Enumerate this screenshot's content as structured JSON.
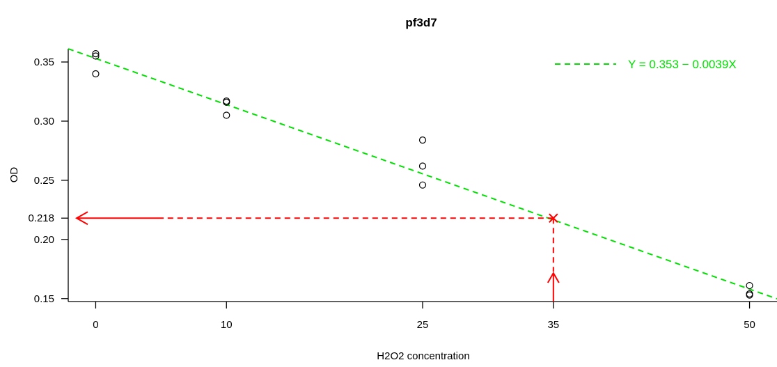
{
  "chart_data": {
    "type": "scatter",
    "title": "pf3d7",
    "xlabel": "H2O2 concentration",
    "ylabel": "OD",
    "x_ticks": [
      0,
      10,
      25,
      35,
      50
    ],
    "y_ticks": [
      0.15,
      0.2,
      0.218,
      0.25,
      0.3,
      0.35
    ],
    "y_tick_labels": [
      "0.15",
      "0.20",
      "0.218",
      "0.25",
      "0.30",
      "0.35"
    ],
    "xlim": [
      -2.1,
      52.1
    ],
    "ylim": [
      0.1475,
      0.3612
    ],
    "grid": false,
    "legend": {
      "position": "top-right"
    },
    "points": [
      {
        "x": 0,
        "y": 0.357
      },
      {
        "x": 0,
        "y": 0.355
      },
      {
        "x": 0,
        "y": 0.34
      },
      {
        "x": 10,
        "y": 0.317
      },
      {
        "x": 10,
        "y": 0.316
      },
      {
        "x": 10,
        "y": 0.305
      },
      {
        "x": 25,
        "y": 0.284
      },
      {
        "x": 25,
        "y": 0.262
      },
      {
        "x": 25,
        "y": 0.246
      },
      {
        "x": 50,
        "y": 0.161
      },
      {
        "x": 50,
        "y": 0.154
      },
      {
        "x": 50,
        "y": 0.153
      }
    ],
    "fit_line": {
      "label": "Y = 0.353 − 0.0039X",
      "intercept": 0.353,
      "slope": -0.0039,
      "color": "#00e000"
    },
    "annotation": {
      "x": 35,
      "y": 0.218,
      "color": "#ff0000"
    }
  }
}
